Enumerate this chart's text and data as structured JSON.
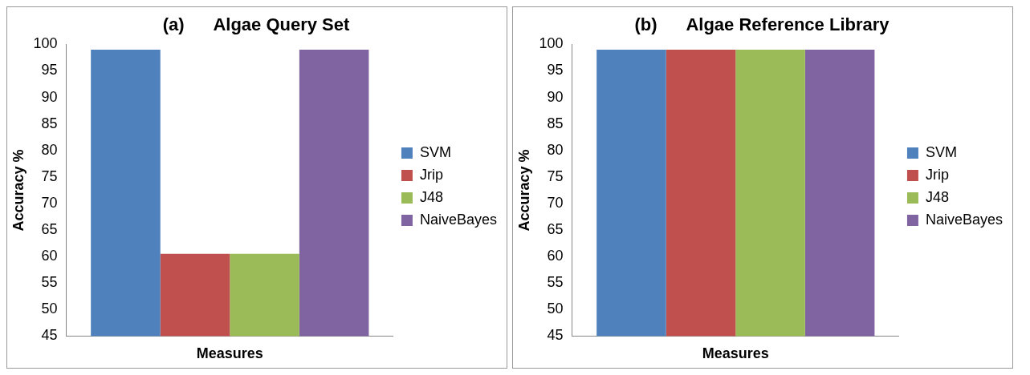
{
  "chart_data": [
    {
      "type": "bar",
      "title": "(a)      Algae Query Set",
      "xlabel": "Measures",
      "ylabel": "Accuracy %",
      "categories": [
        null
      ],
      "series": [
        {
          "name": "SVM",
          "color": "#4f81bd",
          "values": [
            99
          ]
        },
        {
          "name": "Jrip",
          "color": "#c0504d",
          "values": [
            60.5
          ]
        },
        {
          "name": "J48",
          "color": "#9bbb59",
          "values": [
            60.5
          ]
        },
        {
          "name": "NaiveBayes",
          "color": "#8064a2",
          "values": [
            99
          ]
        }
      ],
      "ylim": [
        45,
        100
      ],
      "yticks": [
        45,
        50,
        55,
        60,
        65,
        70,
        75,
        80,
        85,
        90,
        95,
        100
      ],
      "grid": false,
      "legend": "right"
    },
    {
      "type": "bar",
      "title": "(b)      Algae Reference Library",
      "xlabel": "Measures",
      "ylabel": "Accuracy %",
      "categories": [
        null
      ],
      "series": [
        {
          "name": "SVM",
          "color": "#4f81bd",
          "values": [
            99
          ]
        },
        {
          "name": "Jrip",
          "color": "#c0504d",
          "values": [
            99
          ]
        },
        {
          "name": "J48",
          "color": "#9bbb59",
          "values": [
            99
          ]
        },
        {
          "name": "NaiveBayes",
          "color": "#8064a2",
          "values": [
            99
          ]
        }
      ],
      "ylim": [
        45,
        100
      ],
      "yticks": [
        45,
        50,
        55,
        60,
        65,
        70,
        75,
        80,
        85,
        90,
        95,
        100
      ],
      "grid": false,
      "legend": "right"
    }
  ]
}
